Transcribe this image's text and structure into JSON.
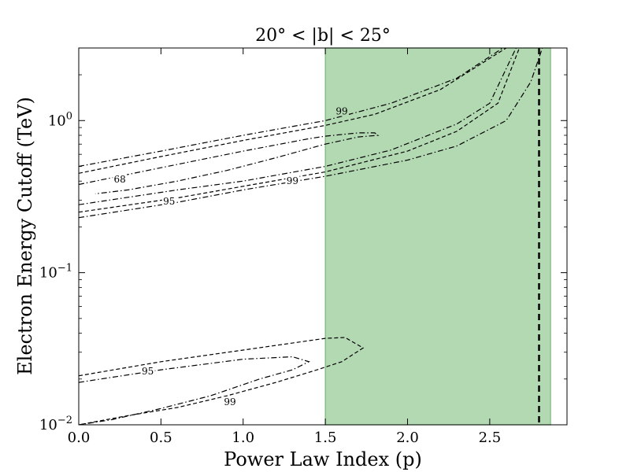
{
  "chart_data": {
    "type": "line",
    "title": "20° < |b| < 25°",
    "xlabel": "Power Law Index (p)",
    "ylabel": "Electron Energy Cutoff (TeV)",
    "xlim": [
      0.0,
      2.97
    ],
    "ylim": [
      0.01,
      3.0
    ],
    "yscale": "log",
    "grid": false,
    "x_ticks": [
      {
        "value": 0.0,
        "label": "0.0"
      },
      {
        "value": 0.5,
        "label": "0.5"
      },
      {
        "value": 1.0,
        "label": "1.0"
      },
      {
        "value": 1.5,
        "label": "1.5"
      },
      {
        "value": 2.0,
        "label": "2.0"
      },
      {
        "value": 2.5,
        "label": "2.5"
      }
    ],
    "y_ticks": [
      {
        "value": 0.01,
        "base": "10",
        "exp": "−2"
      },
      {
        "value": 0.1,
        "base": "10",
        "exp": "−1"
      },
      {
        "value": 1.0,
        "base": "10",
        "exp": "0"
      }
    ],
    "shaded_region": {
      "x0": 1.5,
      "x1": 2.87,
      "color": "#b3d9b3",
      "edge": "#7ab87a"
    },
    "vertical_line": {
      "x": 2.8,
      "style": "dashed",
      "color": "#000000"
    },
    "series": [
      {
        "style": "dashdot",
        "points": [
          [
            0.0,
            0.5
          ],
          [
            0.5,
            0.63
          ],
          [
            1.0,
            0.8
          ],
          [
            1.5,
            1.0
          ],
          [
            1.9,
            1.3
          ],
          [
            2.3,
            1.9
          ],
          [
            2.58,
            3.0
          ]
        ]
      },
      {
        "style": "dashed",
        "points": [
          [
            0.0,
            0.45
          ],
          [
            0.5,
            0.58
          ],
          [
            1.0,
            0.74
          ],
          [
            1.5,
            0.93
          ],
          [
            1.8,
            1.1
          ],
          [
            2.2,
            1.6
          ],
          [
            2.6,
            3.0
          ]
        ]
      },
      {
        "style": "dashdot",
        "points": [
          [
            0.0,
            0.38
          ],
          [
            0.5,
            0.49
          ],
          [
            1.0,
            0.63
          ],
          [
            1.4,
            0.76
          ],
          [
            1.5,
            0.79
          ],
          [
            1.7,
            0.83
          ],
          [
            1.8,
            0.83
          ],
          [
            1.82,
            0.8
          ],
          [
            1.7,
            0.78
          ],
          [
            1.5,
            0.7
          ],
          [
            1.2,
            0.57
          ],
          [
            0.9,
            0.47
          ],
          [
            0.6,
            0.4
          ],
          [
            0.3,
            0.35
          ],
          [
            0.1,
            0.33
          ]
        ]
      },
      {
        "style": "dashdot",
        "points": [
          [
            0.0,
            0.28
          ],
          [
            0.6,
            0.35
          ],
          [
            1.0,
            0.4
          ],
          [
            1.5,
            0.5
          ],
          [
            1.9,
            0.64
          ],
          [
            2.3,
            0.95
          ],
          [
            2.5,
            1.3
          ],
          [
            2.66,
            3.0
          ]
        ]
      },
      {
        "style": "dashed",
        "points": [
          [
            0.0,
            0.25
          ],
          [
            0.6,
            0.31
          ],
          [
            1.0,
            0.37
          ],
          [
            1.5,
            0.46
          ],
          [
            2.0,
            0.63
          ],
          [
            2.3,
            0.85
          ],
          [
            2.55,
            1.3
          ],
          [
            2.68,
            3.0
          ]
        ]
      },
      {
        "style": "dashdot",
        "points": [
          [
            0.0,
            0.23
          ],
          [
            0.6,
            0.29
          ],
          [
            1.0,
            0.35
          ],
          [
            1.5,
            0.43
          ],
          [
            2.0,
            0.55
          ],
          [
            2.3,
            0.68
          ],
          [
            2.6,
            1.0
          ],
          [
            2.75,
            1.8
          ],
          [
            2.82,
            3.0
          ]
        ]
      },
      {
        "style": "dashed",
        "points": [
          [
            0.0,
            0.021
          ],
          [
            0.5,
            0.026
          ],
          [
            1.0,
            0.031
          ],
          [
            1.5,
            0.037
          ],
          [
            1.62,
            0.0375
          ],
          [
            1.73,
            0.032
          ],
          [
            1.6,
            0.026
          ],
          [
            1.45,
            0.023
          ],
          [
            1.2,
            0.019
          ],
          [
            0.9,
            0.0155
          ],
          [
            0.6,
            0.013
          ],
          [
            0.3,
            0.0115
          ],
          [
            0.0,
            0.01
          ]
        ]
      },
      {
        "style": "dashdot",
        "points": [
          [
            0.0,
            0.019
          ],
          [
            0.5,
            0.023
          ],
          [
            1.0,
            0.027
          ],
          [
            1.3,
            0.028
          ],
          [
            1.4,
            0.026
          ],
          [
            1.3,
            0.023
          ],
          [
            1.1,
            0.02
          ],
          [
            0.8,
            0.0155
          ],
          [
            0.5,
            0.0128
          ],
          [
            0.2,
            0.0108
          ],
          [
            0.0,
            0.01
          ]
        ]
      }
    ],
    "contour_labels": [
      {
        "text": "99",
        "x": 1.6,
        "y": 1.15
      },
      {
        "text": "68",
        "x": 0.25,
        "y": 0.41
      },
      {
        "text": "95",
        "x": 0.55,
        "y": 0.295
      },
      {
        "text": "99",
        "x": 1.3,
        "y": 0.4
      },
      {
        "text": "95",
        "x": 0.42,
        "y": 0.0225
      },
      {
        "text": "99",
        "x": 0.92,
        "y": 0.0141
      }
    ]
  }
}
